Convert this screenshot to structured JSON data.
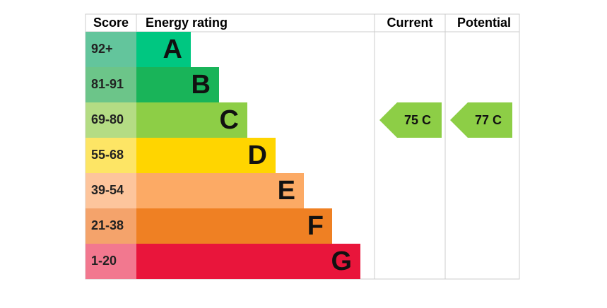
{
  "header": {
    "score": "Score",
    "rating": "Energy rating",
    "current": "Current",
    "potential": "Potential"
  },
  "bands": [
    {
      "score": "92+",
      "letter": "A",
      "score_color": "#63c59c",
      "color": "#00c781"
    },
    {
      "score": "81-91",
      "letter": "B",
      "score_color": "#6cc589",
      "color": "#19b459"
    },
    {
      "score": "69-80",
      "letter": "C",
      "score_color": "#b4dc84",
      "color": "#8dce46"
    },
    {
      "score": "55-68",
      "letter": "D",
      "score_color": "#fde565",
      "color": "#ffd500"
    },
    {
      "score": "39-54",
      "letter": "E",
      "score_color": "#fdc59c",
      "color": "#fcaa65"
    },
    {
      "score": "21-38",
      "letter": "F",
      "score_color": "#f4a36b",
      "color": "#ef8023"
    },
    {
      "score": "1-20",
      "letter": "G",
      "score_color": "#f2788f",
      "color": "#e9153b"
    }
  ],
  "current": {
    "label": "75 C",
    "color": "#8dce46"
  },
  "potential": {
    "label": "77 C",
    "color": "#8dce46"
  }
}
